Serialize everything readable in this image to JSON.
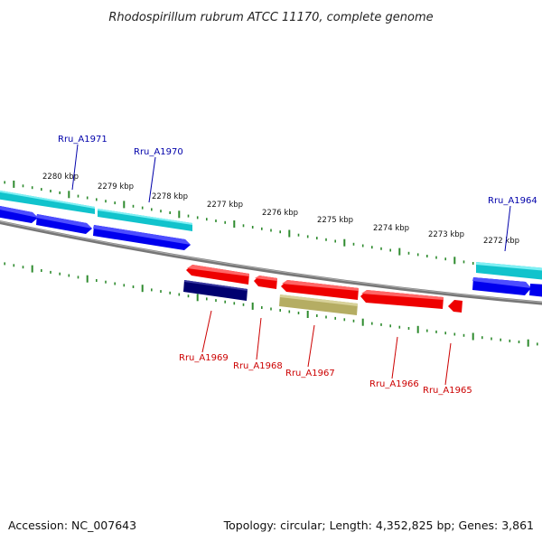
{
  "title": "Rhodospirillum rubrum ATCC 11170, complete genome",
  "footer": {
    "accession": "Accession: NC_007643",
    "topology": "Topology: circular; Length: 4,352,825 bp; Genes: 3,861"
  },
  "colors": {
    "backbone": "#777777",
    "tick": "#2e8b2e",
    "forward_cds": "#0000ee",
    "forward_gene": "#11c3cc",
    "reverse_cds": "#ee0000",
    "reverse_dark": "#000070",
    "reverse_khaki": "#b5ad63",
    "forward_label": "#0000aa",
    "reverse_label": "#cc0000"
  },
  "kbp_labels": [
    "2280 kbp",
    "2279 kbp",
    "2278 kbp",
    "2277 kbp",
    "2276 kbp",
    "2275 kbp",
    "2274 kbp",
    "2273 kbp",
    "2272 kbp"
  ],
  "forward_gene_labels": [
    "Rru_A1971",
    "Rru_A1970",
    "Rru_A1964"
  ],
  "reverse_gene_labels": [
    "Rru_A1969",
    "Rru_A1968",
    "Rru_A1967",
    "Rru_A1966",
    "Rru_A1965"
  ]
}
